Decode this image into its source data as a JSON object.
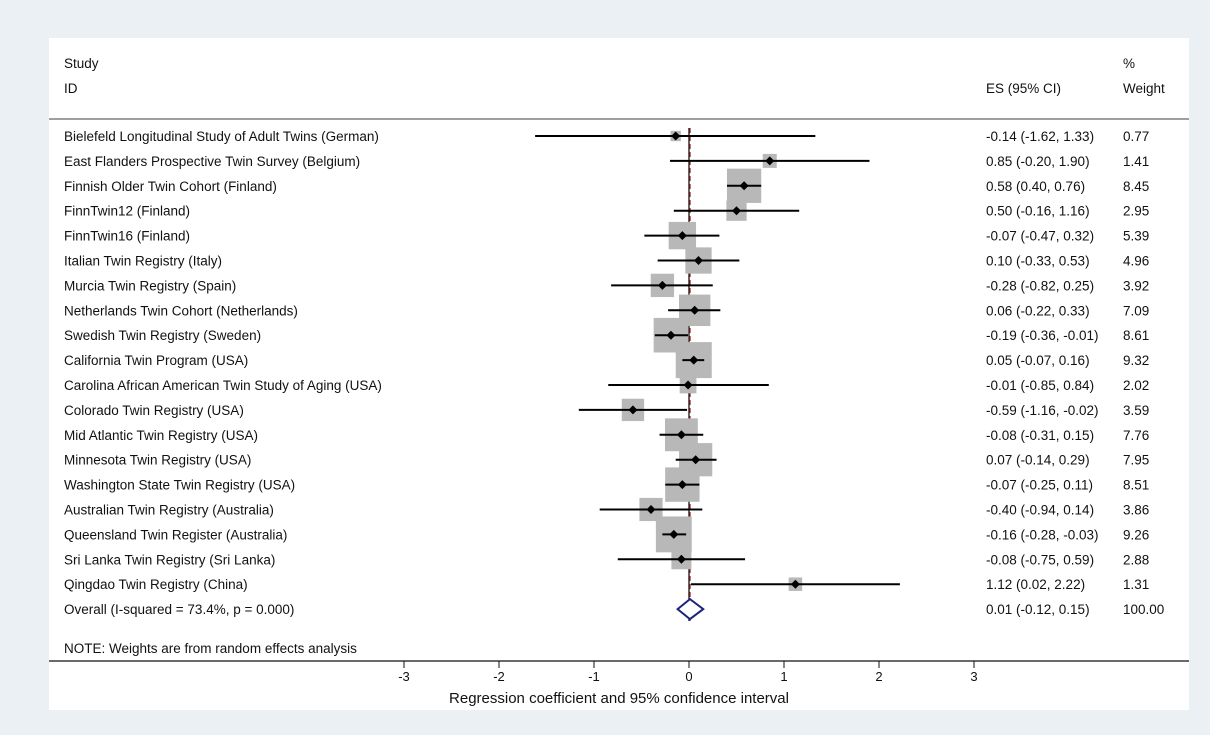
{
  "chart_data": {
    "type": "forest",
    "headers": {
      "study": "Study",
      "id": "ID",
      "es": "ES (95% CI)",
      "weight_top": "%",
      "weight": "Weight"
    },
    "studies": [
      {
        "name": "Bielefeld Longitudinal Study of Adult Twins (German)",
        "es": -0.14,
        "lo": -1.62,
        "hi": 1.33,
        "weight": 0.77,
        "es_text": "-0.14 (-1.62, 1.33)",
        "weight_text": "0.77"
      },
      {
        "name": "East Flanders Prospective Twin Survey (Belgium)",
        "es": 0.85,
        "lo": -0.2,
        "hi": 1.9,
        "weight": 1.41,
        "es_text": "0.85 (-0.20, 1.90)",
        "weight_text": "1.41"
      },
      {
        "name": "Finnish Older Twin Cohort (Finland)",
        "es": 0.58,
        "lo": 0.4,
        "hi": 0.76,
        "weight": 8.45,
        "es_text": "0.58 (0.40, 0.76)",
        "weight_text": "8.45"
      },
      {
        "name": "FinnTwin12 (Finland)",
        "es": 0.5,
        "lo": -0.16,
        "hi": 1.16,
        "weight": 2.95,
        "es_text": "0.50 (-0.16, 1.16)",
        "weight_text": "2.95"
      },
      {
        "name": "FinnTwin16 (Finland)",
        "es": -0.07,
        "lo": -0.47,
        "hi": 0.32,
        "weight": 5.39,
        "es_text": "-0.07 (-0.47, 0.32)",
        "weight_text": "5.39"
      },
      {
        "name": "Italian Twin Registry (Italy)",
        "es": 0.1,
        "lo": -0.33,
        "hi": 0.53,
        "weight": 4.96,
        "es_text": "0.10 (-0.33, 0.53)",
        "weight_text": "4.96"
      },
      {
        "name": "Murcia Twin Registry (Spain)",
        "es": -0.28,
        "lo": -0.82,
        "hi": 0.25,
        "weight": 3.92,
        "es_text": "-0.28 (-0.82, 0.25)",
        "weight_text": "3.92"
      },
      {
        "name": "Netherlands Twin Cohort (Netherlands)",
        "es": 0.06,
        "lo": -0.22,
        "hi": 0.33,
        "weight": 7.09,
        "es_text": "0.06 (-0.22, 0.33)",
        "weight_text": "7.09"
      },
      {
        "name": "Swedish Twin Registry (Sweden)",
        "es": -0.19,
        "lo": -0.36,
        "hi": -0.01,
        "weight": 8.61,
        "es_text": "-0.19 (-0.36, -0.01)",
        "weight_text": "8.61"
      },
      {
        "name": "California Twin Program (USA)",
        "es": 0.05,
        "lo": -0.07,
        "hi": 0.16,
        "weight": 9.32,
        "es_text": "0.05 (-0.07, 0.16)",
        "weight_text": "9.32"
      },
      {
        "name": "Carolina African American Twin Study of Aging (USA)",
        "es": -0.01,
        "lo": -0.85,
        "hi": 0.84,
        "weight": 2.02,
        "es_text": "-0.01 (-0.85, 0.84)",
        "weight_text": "2.02"
      },
      {
        "name": "Colorado Twin Registry (USA)",
        "es": -0.59,
        "lo": -1.16,
        "hi": -0.02,
        "weight": 3.59,
        "es_text": "-0.59 (-1.16, -0.02)",
        "weight_text": "3.59"
      },
      {
        "name": "Mid Atlantic Twin Registry (USA)",
        "es": -0.08,
        "lo": -0.31,
        "hi": 0.15,
        "weight": 7.76,
        "es_text": "-0.08 (-0.31, 0.15)",
        "weight_text": "7.76"
      },
      {
        "name": "Minnesota Twin Registry (USA)",
        "es": 0.07,
        "lo": -0.14,
        "hi": 0.29,
        "weight": 7.95,
        "es_text": "0.07 (-0.14, 0.29)",
        "weight_text": "7.95"
      },
      {
        "name": "Washington State Twin Registry (USA)",
        "es": -0.07,
        "lo": -0.25,
        "hi": 0.11,
        "weight": 8.51,
        "es_text": "-0.07 (-0.25, 0.11)",
        "weight_text": "8.51"
      },
      {
        "name": "Australian Twin Registry (Australia)",
        "es": -0.4,
        "lo": -0.94,
        "hi": 0.14,
        "weight": 3.86,
        "es_text": "-0.40 (-0.94, 0.14)",
        "weight_text": "3.86"
      },
      {
        "name": "Queensland Twin Register (Australia)",
        "es": -0.16,
        "lo": -0.28,
        "hi": -0.03,
        "weight": 9.26,
        "es_text": "-0.16 (-0.28, -0.03)",
        "weight_text": "9.26"
      },
      {
        "name": "Sri Lanka Twin Registry (Sri Lanka)",
        "es": -0.08,
        "lo": -0.75,
        "hi": 0.59,
        "weight": 2.88,
        "es_text": "-0.08 (-0.75, 0.59)",
        "weight_text": "2.88"
      },
      {
        "name": "Qingdao Twin Registry (China)",
        "es": 1.12,
        "lo": 0.02,
        "hi": 2.22,
        "weight": 1.31,
        "es_text": "1.12 (0.02, 2.22)",
        "weight_text": "1.31"
      }
    ],
    "overall": {
      "name": "Overall  (I-squared = 73.4%, p = 0.000)",
      "es": 0.01,
      "lo": -0.12,
      "hi": 0.15,
      "es_text": "0.01 (-0.12, 0.15)",
      "weight_text": "100.00"
    },
    "note": "NOTE: Weights are from random effects analysis",
    "xticks": [
      -3,
      -2,
      -1,
      0,
      1,
      2,
      3
    ],
    "xlabel": "Regression coefficient and 95% confidence interval",
    "colors": {
      "background": "#eaf0f4",
      "box": "#b8b8b8",
      "diamond": "#1a237e",
      "ref_line": "#8b1a1a"
    }
  }
}
